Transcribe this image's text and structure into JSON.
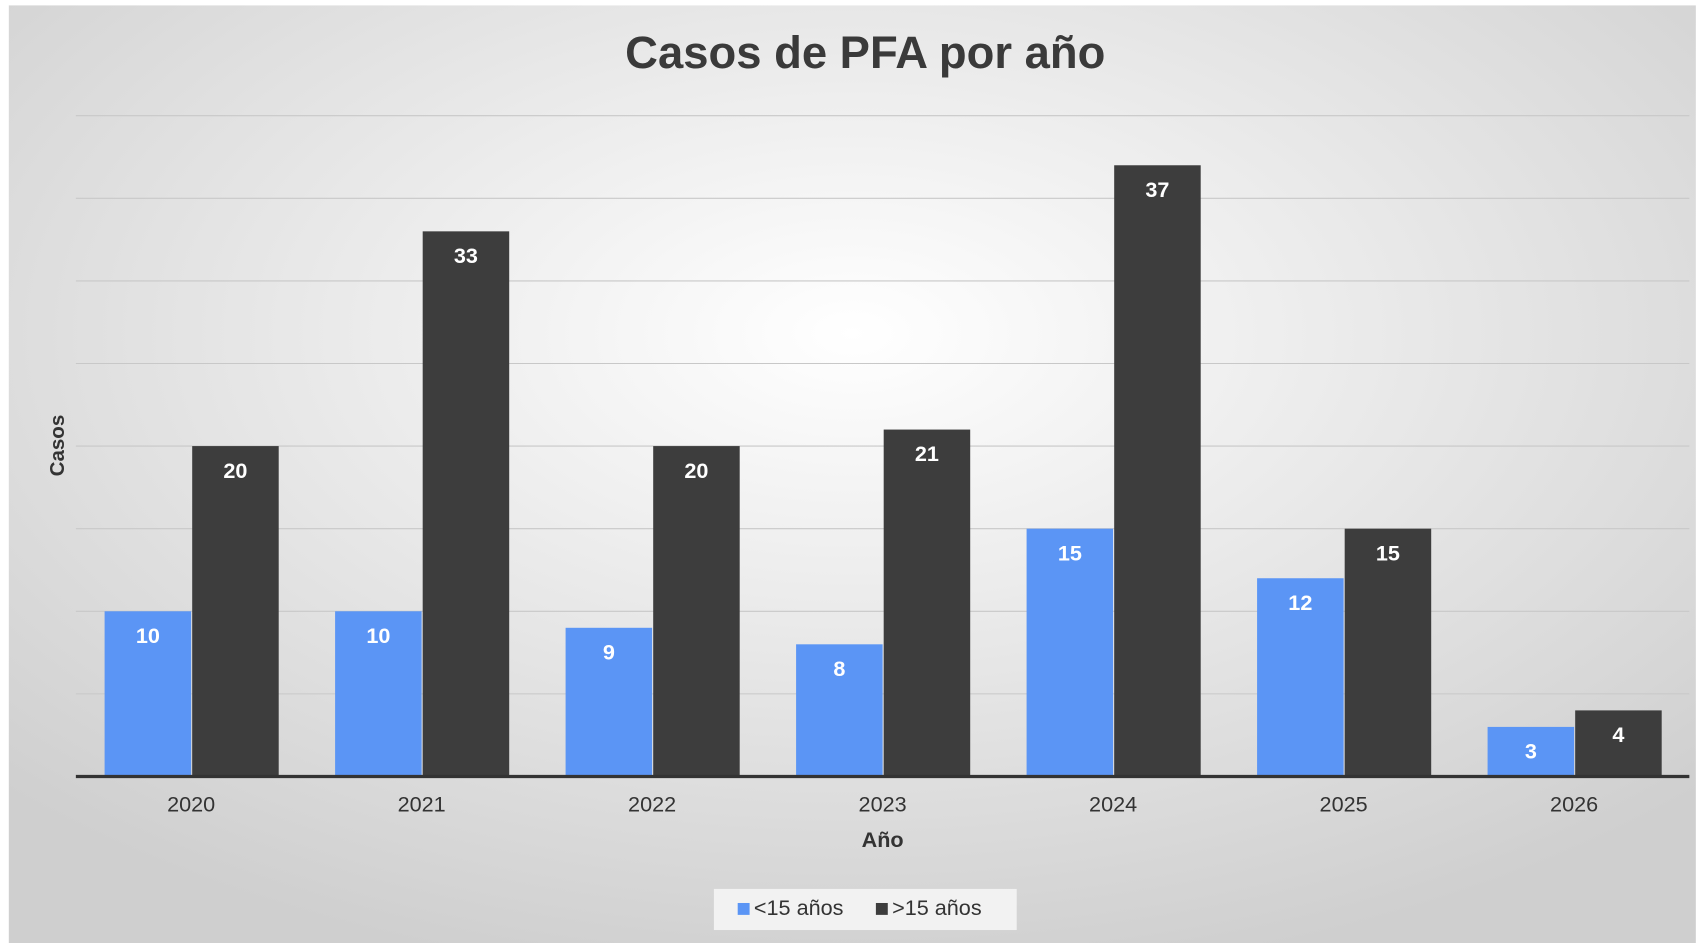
{
  "chart_data": {
    "type": "bar",
    "title": "Casos de PFA por año",
    "x_label": "Año",
    "y_label": "Casos",
    "categories": [
      "2020",
      "2021",
      "2022",
      "2023",
      "2024",
      "2025",
      "2026"
    ],
    "series": [
      {
        "name": "<15 años",
        "color": "#5b95f5",
        "values": [
          10,
          10,
          9,
          8,
          15,
          12,
          3
        ]
      },
      {
        "name": ">15 años",
        "color": "#3d3d3d",
        "values": [
          20,
          33,
          20,
          21,
          37,
          15,
          4
        ]
      }
    ],
    "ylim": [
      0,
      40
    ],
    "yticks": [
      0,
      5,
      10,
      15,
      20,
      25,
      30,
      35,
      40
    ],
    "grid": true,
    "legend": "bottom"
  }
}
